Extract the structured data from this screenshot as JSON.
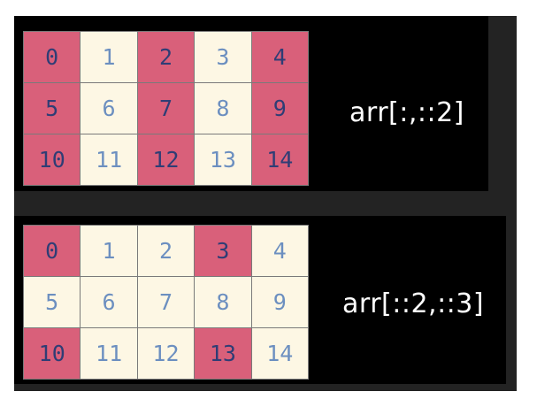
{
  "panels": [
    {
      "caption": "arr[:,::2]",
      "colors": {
        "selected": "#d9607a",
        "unselected": "#fdf7e4"
      },
      "rows": [
        [
          {
            "v": "0",
            "sel": true
          },
          {
            "v": "1",
            "sel": false
          },
          {
            "v": "2",
            "sel": true
          },
          {
            "v": "3",
            "sel": false
          },
          {
            "v": "4",
            "sel": true
          }
        ],
        [
          {
            "v": "5",
            "sel": true
          },
          {
            "v": "6",
            "sel": false
          },
          {
            "v": "7",
            "sel": true
          },
          {
            "v": "8",
            "sel": false
          },
          {
            "v": "9",
            "sel": true
          }
        ],
        [
          {
            "v": "10",
            "sel": true
          },
          {
            "v": "11",
            "sel": false
          },
          {
            "v": "12",
            "sel": true
          },
          {
            "v": "13",
            "sel": false
          },
          {
            "v": "14",
            "sel": true
          }
        ]
      ]
    },
    {
      "caption": "arr[::2,::3]",
      "colors": {
        "selected": "#d9607a",
        "unselected": "#fdf7e4"
      },
      "rows": [
        [
          {
            "v": "0",
            "sel": true
          },
          {
            "v": "1",
            "sel": false
          },
          {
            "v": "2",
            "sel": false
          },
          {
            "v": "3",
            "sel": true
          },
          {
            "v": "4",
            "sel": false
          }
        ],
        [
          {
            "v": "5",
            "sel": false
          },
          {
            "v": "6",
            "sel": false
          },
          {
            "v": "7",
            "sel": false
          },
          {
            "v": "8",
            "sel": false
          },
          {
            "v": "9",
            "sel": false
          }
        ],
        [
          {
            "v": "10",
            "sel": true
          },
          {
            "v": "11",
            "sel": false
          },
          {
            "v": "12",
            "sel": false
          },
          {
            "v": "13",
            "sel": true
          },
          {
            "v": "14",
            "sel": false
          }
        ]
      ]
    }
  ]
}
